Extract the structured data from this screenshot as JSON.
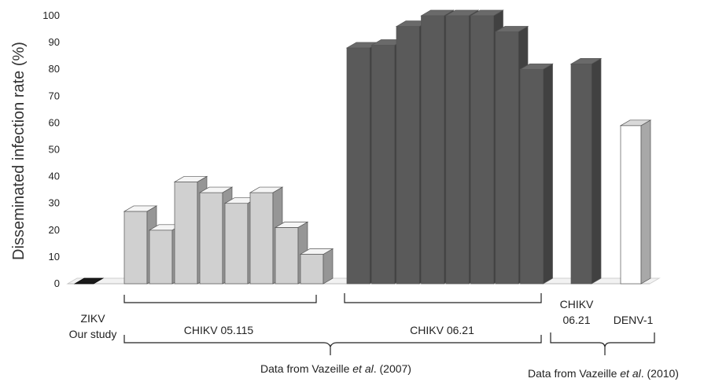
{
  "chart_data": {
    "type": "bar",
    "style": "3d",
    "title": "",
    "ylabel": "Disseminated infection rate (%)",
    "ylim": [
      0,
      100
    ],
    "yticks": [
      0,
      10,
      20,
      30,
      40,
      50,
      60,
      70,
      80,
      90,
      100
    ],
    "grid": false,
    "legend": "none",
    "colors": {
      "ZIKV": "#1a1a1a",
      "CHIKV 05.115": "#d0d0d0",
      "CHIKV 06.21": "#5a5a5a",
      "DENV-1": "#ffffff"
    },
    "series": [
      {
        "group": "ZIKV",
        "values": [
          0
        ]
      },
      {
        "group": "CHIKV 05.115",
        "values": [
          27,
          20,
          38,
          34,
          30,
          34,
          21,
          11
        ]
      },
      {
        "group": "CHIKV 06.21",
        "values": [
          88,
          89,
          96,
          100,
          100,
          100,
          94,
          80
        ]
      },
      {
        "group": "CHIKV 06.21",
        "values": [
          82
        ]
      },
      {
        "group": "DENV-1",
        "values": [
          59
        ]
      }
    ],
    "group_labels": {
      "zikv_line1": "ZIKV",
      "zikv_line2": "Our study",
      "chikv05": "CHIKV 05.115",
      "chikv06": "CHIKV 06.21",
      "chikv06_2010_line1": "CHIKV",
      "chikv06_2010_line2": "06.21",
      "denv": "DENV-1"
    },
    "sources": {
      "s2007_pre": "Data from Vazeille ",
      "s2007_em": "et al",
      "s2007_post": ". (2007)",
      "s2010_pre": "Data from Vazeille ",
      "s2010_em": "et al",
      "s2010_post": ". (2010)"
    }
  }
}
